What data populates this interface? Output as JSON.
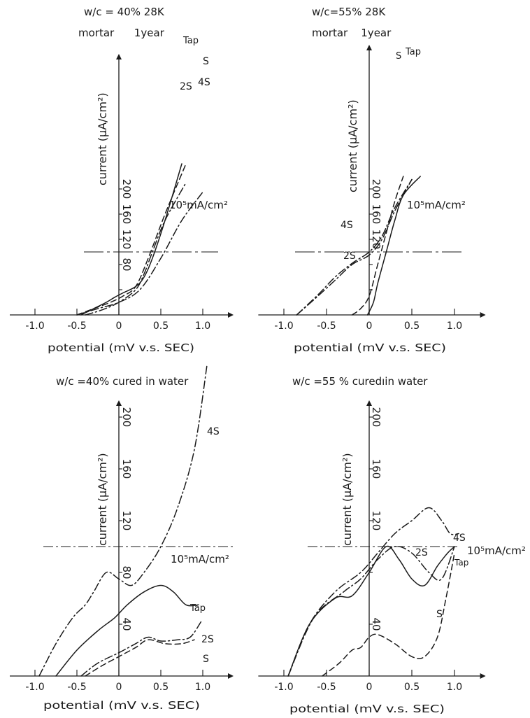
{
  "chart_data": [
    {
      "type": "line",
      "title_line1": "w/c = 40% 28K",
      "title_line2": "mortar      1year",
      "xlabel": "potential (mV v.s. SEC)",
      "ylabel": "current (μA/cm²)",
      "xlim": [
        -1.3,
        1.3
      ],
      "ylim": [
        0,
        235
      ],
      "xticks": [
        -1.0,
        -0.5,
        0,
        0.5,
        1.0
      ],
      "xtick_labels": [
        "-1.0",
        "-0.5",
        "0",
        "0.5",
        "1.0"
      ],
      "yticks": [
        40,
        80,
        120,
        160,
        200
      ],
      "ytick_labels": [
        "",
        "80",
        "120",
        "160",
        "200"
      ],
      "reference": {
        "y": 100,
        "label": "10⁵mA/cm²"
      },
      "series": [
        {
          "name": "Tap",
          "style": "solid",
          "x": [
            -0.45,
            -0.3,
            -0.15,
            -0.05,
            0.05,
            0.2,
            0.3,
            0.4,
            0.55,
            0.75
          ],
          "y": [
            0,
            10,
            20,
            28,
            35,
            45,
            60,
            90,
            150,
            240
          ]
        },
        {
          "name": "S",
          "style": "dashdot",
          "x": [
            -0.4,
            -0.2,
            0,
            0.2,
            0.3,
            0.4,
            0.55,
            0.8
          ],
          "y": [
            0,
            8,
            20,
            40,
            65,
            100,
            150,
            210
          ]
        },
        {
          "name": "2S",
          "style": "dashed",
          "x": [
            -0.5,
            -0.3,
            -0.1,
            0.05,
            0.2,
            0.35,
            0.55,
            0.8
          ],
          "y": [
            0,
            10,
            20,
            30,
            45,
            90,
            160,
            240
          ]
        },
        {
          "name": "4S",
          "style": "dashdot",
          "x": [
            -0.5,
            -0.25,
            0,
            0.25,
            0.5,
            0.75,
            1.0
          ],
          "y": [
            0,
            10,
            20,
            40,
            90,
            150,
            195
          ]
        }
      ],
      "curve_labels": [
        "Tap",
        "S",
        "2S",
        "4S"
      ]
    },
    {
      "type": "line",
      "title_line1": "w/c=55% 28K",
      "title_line2": "mortar    1year",
      "xlabel": "potential (mV v.s. SEC)",
      "ylabel": "current (μA/cm²)",
      "xlim": [
        -1.3,
        1.3
      ],
      "ylim": [
        0,
        235
      ],
      "xticks": [
        -1.0,
        -0.5,
        0,
        0.5,
        1.0
      ],
      "xtick_labels": [
        "-1.0",
        "-0.5",
        "0",
        "0.5",
        "1.0"
      ],
      "yticks": [
        40,
        80,
        120,
        160,
        200
      ],
      "ytick_labels": [
        "",
        "",
        "120",
        "160",
        "200"
      ],
      "reference": {
        "y": 100,
        "label": "10⁵mA/cm²"
      },
      "series": [
        {
          "name": "Tap",
          "style": "solid",
          "x": [
            -0.02,
            0.05,
            0.1,
            0.2,
            0.3,
            0.4,
            0.6
          ],
          "y": [
            0,
            20,
            50,
            100,
            150,
            190,
            220
          ]
        },
        {
          "name": "S",
          "style": "dashed",
          "x": [
            -0.2,
            -0.1,
            0,
            0.1,
            0.2,
            0.3,
            0.4
          ],
          "y": [
            0,
            10,
            30,
            80,
            130,
            180,
            220
          ]
        },
        {
          "name": "2S",
          "style": "dashdot",
          "x": [
            -0.85,
            -0.6,
            -0.4,
            -0.2,
            0,
            0.15,
            0.3,
            0.5
          ],
          "y": [
            0,
            30,
            55,
            80,
            95,
            120,
            165,
            215
          ]
        },
        {
          "name": "4S",
          "style": "dashdot",
          "x": [
            -0.85,
            -0.6,
            -0.4,
            -0.2,
            0,
            0.15,
            0.3,
            0.5
          ],
          "y": [
            0,
            32,
            60,
            82,
            100,
            125,
            170,
            215
          ]
        }
      ],
      "curve_labels": [
        "S",
        "Tap",
        "4S",
        "2S"
      ]
    },
    {
      "type": "line",
      "title_line1": "w/c =40% cured in water",
      "xlabel": "potential (mV v.s. SEC)",
      "ylabel": "current (μA/cm²)",
      "xlim": [
        -1.3,
        1.3
      ],
      "ylim": [
        0,
        235
      ],
      "xticks": [
        -1.0,
        -0.5,
        0,
        0.5,
        1.0
      ],
      "xtick_labels": [
        "-1.0",
        "-0.5",
        "0",
        "0.5",
        "1.0"
      ],
      "yticks": [
        40,
        80,
        120,
        160,
        200
      ],
      "ytick_labels": [
        "40",
        "80",
        "120",
        "160",
        "200"
      ],
      "reference": {
        "y": 100,
        "label": "10⁵mA/cm²"
      },
      "series": [
        {
          "name": "4S",
          "style": "dashdot",
          "x": [
            -0.95,
            -0.75,
            -0.55,
            -0.4,
            -0.3,
            -0.15,
            0,
            0.15,
            0.3,
            0.5,
            0.7,
            0.9,
            1.05
          ],
          "y": [
            0,
            25,
            45,
            55,
            65,
            80,
            75,
            70,
            80,
            100,
            130,
            175,
            240
          ]
        },
        {
          "name": "Tap",
          "style": "solid",
          "x": [
            -0.75,
            -0.5,
            -0.25,
            -0.05,
            0.1,
            0.3,
            0.5,
            0.65,
            0.8,
            0.95
          ],
          "y": [
            0,
            20,
            35,
            45,
            55,
            65,
            70,
            65,
            55,
            55
          ]
        },
        {
          "name": "2S",
          "style": "dashdot",
          "x": [
            -0.45,
            -0.25,
            0,
            0.2,
            0.35,
            0.5,
            0.7,
            0.85,
            0.98
          ],
          "y": [
            0,
            10,
            18,
            25,
            30,
            27,
            28,
            30,
            42
          ]
        },
        {
          "name": "S",
          "style": "dashed",
          "x": [
            -0.4,
            -0.2,
            0,
            0.2,
            0.35,
            0.55,
            0.75,
            0.9
          ],
          "y": [
            0,
            8,
            15,
            22,
            28,
            25,
            25,
            28
          ]
        }
      ],
      "curve_labels": [
        "4S",
        "Tap",
        "2S",
        "S"
      ]
    },
    {
      "type": "line",
      "title_line1": "w/c =55 % curedıin water",
      "xlabel": "potential (mV v.s. SEC)",
      "ylabel": "current (μA/cm²)",
      "xlim": [
        -1.3,
        1.3
      ],
      "ylim": [
        0,
        235
      ],
      "xticks": [
        -1.0,
        -0.5,
        0,
        0.5,
        1.0
      ],
      "xtick_labels": [
        "-1.0",
        "-0.5",
        "0",
        "0.5",
        "1.0"
      ],
      "yticks": [
        40,
        80,
        120,
        160,
        200
      ],
      "ytick_labels": [
        "40",
        "",
        "120",
        "160",
        "200"
      ],
      "reference": {
        "y": 100,
        "label": "10⁵mA/cm²"
      },
      "series": [
        {
          "name": "4S",
          "style": "dashdot",
          "x": [
            -0.95,
            -0.7,
            -0.4,
            -0.1,
            0.1,
            0.3,
            0.5,
            0.7,
            0.85,
            0.95,
            1.05
          ],
          "y": [
            0,
            40,
            65,
            80,
            95,
            110,
            120,
            130,
            120,
            110,
            110
          ]
        },
        {
          "name": "2S",
          "style": "dashdot",
          "x": [
            -0.95,
            -0.65,
            -0.3,
            -0.1,
            0.1,
            0.3,
            0.5,
            0.7,
            0.85,
            1.0
          ],
          "y": [
            0,
            45,
            65,
            75,
            90,
            100,
            95,
            80,
            75,
            100
          ]
        },
        {
          "name": "Tap",
          "style": "solid",
          "x": [
            -0.95,
            -0.7,
            -0.4,
            -0.2,
            0,
            0.2,
            0.35,
            0.5,
            0.65,
            0.8,
            0.92,
            1.0
          ],
          "y": [
            0,
            40,
            60,
            62,
            80,
            100,
            90,
            75,
            70,
            85,
            95,
            100
          ]
        },
        {
          "name": "S",
          "style": "dashed",
          "x": [
            -0.55,
            -0.35,
            -0.2,
            -0.1,
            0,
            0.1,
            0.3,
            0.5,
            0.65,
            0.8,
            0.9,
            1.0
          ],
          "y": [
            0,
            10,
            20,
            22,
            30,
            32,
            25,
            15,
            15,
            30,
            60,
            95
          ]
        }
      ],
      "curve_labels": [
        "4S",
        "10⁵mA/cm²",
        "2S",
        "Tap",
        "S"
      ]
    }
  ]
}
